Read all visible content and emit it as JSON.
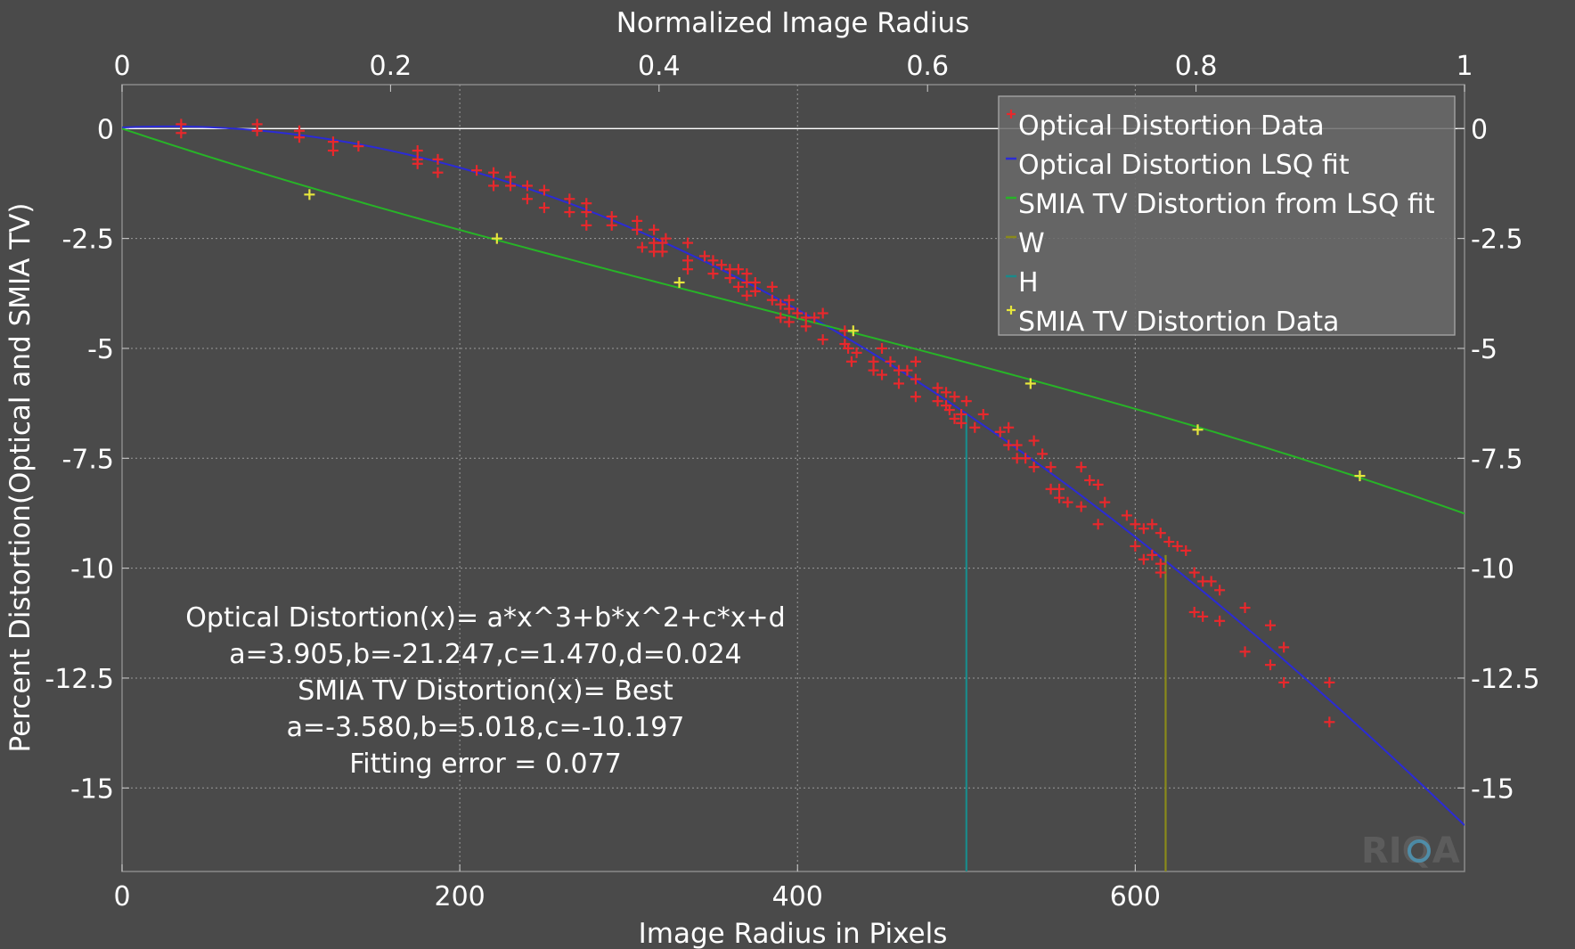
{
  "chart_data": {
    "type": "scatter",
    "title": "",
    "xlabel": "Image Radius in Pixels",
    "x2label": "Normalized Image Radius",
    "ylabel": "Percent Distortion(Optical and SMIA TV)",
    "xlim": [
      0,
      795
    ],
    "x2lim": [
      0,
      1
    ],
    "ylim": [
      -16.9,
      1
    ],
    "xticks": [
      0,
      200,
      400,
      600
    ],
    "xtick_labels": [
      "0",
      "200",
      "400",
      "600"
    ],
    "x2ticks": [
      0,
      0.2,
      0.4,
      0.6,
      0.8,
      1
    ],
    "x2tick_labels": [
      "0",
      "0.2",
      "0.4",
      "0.6",
      "0.8",
      "1"
    ],
    "yticks": [
      0,
      -2.5,
      -5,
      -7.5,
      -10,
      -12.5,
      -15
    ],
    "ytick_labels": [
      "0",
      "-2.5",
      "-5",
      "-7.5",
      "-10",
      "-12.5",
      "-15"
    ],
    "grid": true,
    "legend_position": "top-right",
    "series": [
      {
        "name": "Optical Distortion Data",
        "kind": "scatter",
        "marker": "plus",
        "color": "#e8282c",
        "points": [
          [
            35,
            0.1
          ],
          [
            35,
            -0.1
          ],
          [
            80,
            0.1
          ],
          [
            80,
            -0.05
          ],
          [
            105,
            -0.05
          ],
          [
            105,
            -0.2
          ],
          [
            125,
            -0.3
          ],
          [
            125,
            -0.5
          ],
          [
            140,
            -0.4
          ],
          [
            175,
            -0.5
          ],
          [
            175,
            -0.7
          ],
          [
            175,
            -0.8
          ],
          [
            187,
            -0.7
          ],
          [
            187,
            -1.0
          ],
          [
            210,
            -0.95
          ],
          [
            220,
            -1.0
          ],
          [
            220,
            -1.3
          ],
          [
            230,
            -1.1
          ],
          [
            230,
            -1.3
          ],
          [
            240,
            -1.3
          ],
          [
            240,
            -1.6
          ],
          [
            250,
            -1.4
          ],
          [
            250,
            -1.8
          ],
          [
            265,
            -1.6
          ],
          [
            265,
            -1.9
          ],
          [
            275,
            -1.7
          ],
          [
            275,
            -1.9
          ],
          [
            275,
            -2.2
          ],
          [
            290,
            -2.0
          ],
          [
            290,
            -2.2
          ],
          [
            305,
            -2.1
          ],
          [
            305,
            -2.3
          ],
          [
            308,
            -2.7
          ],
          [
            315,
            -2.3
          ],
          [
            315,
            -2.6
          ],
          [
            315,
            -2.8
          ],
          [
            320,
            -2.6
          ],
          [
            320,
            -2.8
          ],
          [
            322,
            -2.5
          ],
          [
            335,
            -2.6
          ],
          [
            335,
            -3.0
          ],
          [
            335,
            -3.2
          ],
          [
            345,
            -2.9
          ],
          [
            350,
            -3.0
          ],
          [
            350,
            -3.3
          ],
          [
            355,
            -3.1
          ],
          [
            360,
            -3.2
          ],
          [
            360,
            -3.4
          ],
          [
            365,
            -3.2
          ],
          [
            365,
            -3.6
          ],
          [
            370,
            -3.3
          ],
          [
            370,
            -3.5
          ],
          [
            370,
            -3.8
          ],
          [
            375,
            -3.5
          ],
          [
            375,
            -3.7
          ],
          [
            385,
            -3.6
          ],
          [
            385,
            -3.9
          ],
          [
            390,
            -4.0
          ],
          [
            390,
            -4.3
          ],
          [
            395,
            -3.9
          ],
          [
            395,
            -4.1
          ],
          [
            395,
            -4.4
          ],
          [
            400,
            -4.2
          ],
          [
            405,
            -4.3
          ],
          [
            405,
            -4.5
          ],
          [
            410,
            -4.3
          ],
          [
            415,
            -4.2
          ],
          [
            415,
            -4.8
          ],
          [
            428,
            -4.6
          ],
          [
            428,
            -4.9
          ],
          [
            430,
            -5.0
          ],
          [
            432,
            -5.3
          ],
          [
            435,
            -5.1
          ],
          [
            445,
            -5.3
          ],
          [
            445,
            -5.5
          ],
          [
            450,
            -5.0
          ],
          [
            450,
            -5.6
          ],
          [
            455,
            -5.3
          ],
          [
            460,
            -5.5
          ],
          [
            460,
            -5.8
          ],
          [
            465,
            -5.5
          ],
          [
            470,
            -5.3
          ],
          [
            470,
            -5.7
          ],
          [
            470,
            -6.1
          ],
          [
            483,
            -5.9
          ],
          [
            483,
            -6.2
          ],
          [
            488,
            -6.0
          ],
          [
            488,
            -6.3
          ],
          [
            490,
            -6.4
          ],
          [
            493,
            -6.1
          ],
          [
            493,
            -6.6
          ],
          [
            497,
            -6.7
          ],
          [
            497,
            -6.5
          ],
          [
            500,
            -6.2
          ],
          [
            505,
            -6.8
          ],
          [
            510,
            -6.5
          ],
          [
            520,
            -6.9
          ],
          [
            525,
            -6.8
          ],
          [
            525,
            -7.2
          ],
          [
            530,
            -7.2
          ],
          [
            530,
            -7.5
          ],
          [
            535,
            -7.5
          ],
          [
            540,
            -7.1
          ],
          [
            540,
            -7.7
          ],
          [
            545,
            -7.4
          ],
          [
            550,
            -7.7
          ],
          [
            550,
            -8.2
          ],
          [
            555,
            -8.2
          ],
          [
            555,
            -8.4
          ],
          [
            560,
            -8.5
          ],
          [
            568,
            -7.7
          ],
          [
            568,
            -8.6
          ],
          [
            573,
            -8.0
          ],
          [
            578,
            -8.1
          ],
          [
            578,
            -9.0
          ],
          [
            582,
            -8.5
          ],
          [
            595,
            -8.8
          ],
          [
            600,
            -9.0
          ],
          [
            600,
            -9.5
          ],
          [
            605,
            -9.1
          ],
          [
            605,
            -9.8
          ],
          [
            610,
            -9.0
          ],
          [
            610,
            -9.7
          ],
          [
            615,
            -9.2
          ],
          [
            615,
            -9.9
          ],
          [
            615,
            -10.1
          ],
          [
            620,
            -9.4
          ],
          [
            625,
            -9.5
          ],
          [
            630,
            -9.6
          ],
          [
            635,
            -10.1
          ],
          [
            635,
            -11.0
          ],
          [
            640,
            -10.3
          ],
          [
            640,
            -11.1
          ],
          [
            645,
            -10.3
          ],
          [
            650,
            -10.5
          ],
          [
            650,
            -11.2
          ],
          [
            665,
            -10.9
          ],
          [
            665,
            -11.9
          ],
          [
            680,
            -11.3
          ],
          [
            680,
            -12.2
          ],
          [
            688,
            -12.6
          ],
          [
            688,
            -11.8
          ],
          [
            715,
            -12.6
          ],
          [
            715,
            -13.5
          ]
        ]
      },
      {
        "name": "Optical Distortion LSQ fit",
        "kind": "line",
        "color": "#2b2bd6",
        "coefficients": {
          "a": 3.905,
          "b": -21.247,
          "c": 1.47,
          "d": 0.024
        }
      },
      {
        "name": "SMIA TV Distortion from LSQ fit",
        "kind": "line",
        "color": "#27b427",
        "coefficients": {
          "a": -3.58,
          "b": 5.018,
          "c": -10.197
        }
      },
      {
        "name": "W",
        "kind": "vline",
        "color": "#8a8a1a",
        "x": 618,
        "y_top": -9.7
      },
      {
        "name": "H",
        "kind": "vline",
        "color": "#1a8a8a",
        "x": 500,
        "y_top": -6.5
      },
      {
        "name": "SMIA TV Distortion Data",
        "kind": "scatter",
        "marker": "plus",
        "color": "#e6e63c",
        "points": [
          [
            111,
            -1.5
          ],
          [
            222,
            -2.5
          ],
          [
            330,
            -3.5
          ],
          [
            433,
            -4.6
          ],
          [
            538,
            -5.8
          ],
          [
            637,
            -6.85
          ],
          [
            733,
            -7.9
          ]
        ]
      }
    ],
    "annotations": [
      "Optical Distortion(x)= a*x^3+b*x^2+c*x+d",
      "a=3.905,b=-21.247,c=1.470,d=0.024",
      "SMIA TV Distortion(x)= Best",
      "a=-3.580,b=5.018,c=-10.197",
      "Fitting error = 0.077"
    ],
    "watermark": "RIQA"
  }
}
